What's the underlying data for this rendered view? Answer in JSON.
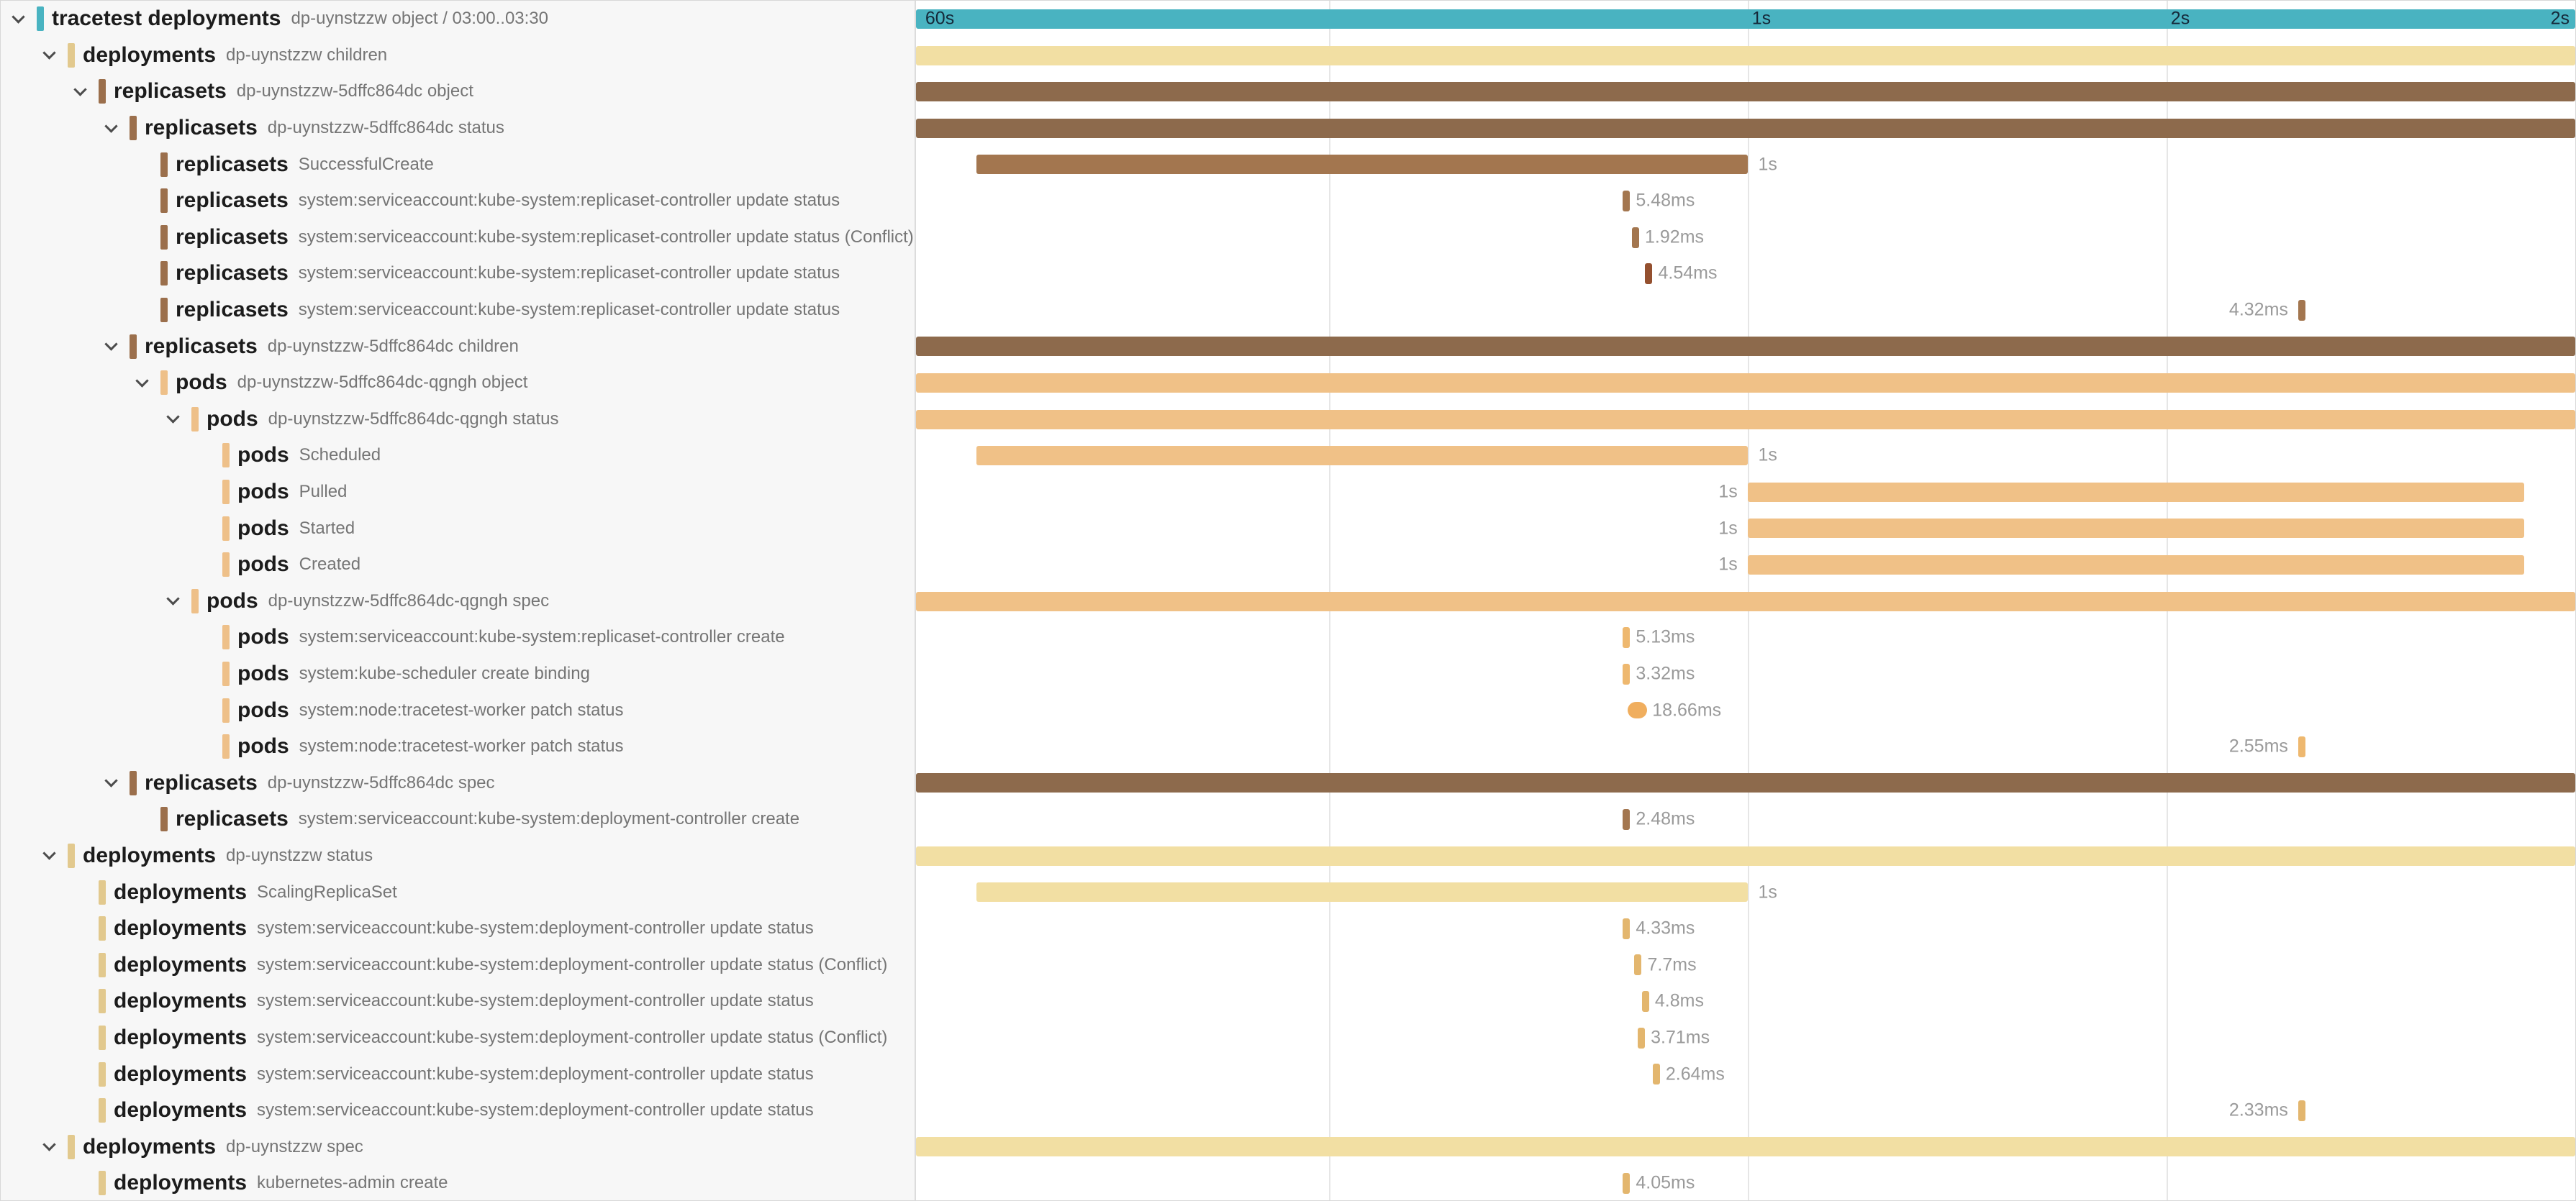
{
  "colors": {
    "teal": "#49b3c1",
    "cream": "#f2dfa3",
    "creamTick": "#e3b66e",
    "brown": "#8d6a4c",
    "brownMid": "#a3764f",
    "brownDark": "#94502f",
    "orange": "#f0c187",
    "orangeTick": "#eeb86f",
    "orangePill": "#f0ae5e",
    "rootChip": "#49b3c1",
    "deploymentsChip": "#e2c98e",
    "replicasetsChip": "#9b6f4c",
    "podsChip": "#eec089"
  },
  "timeline_header": {
    "gridlines": [
      24.88,
      50.12,
      75.36
    ],
    "ticks": [
      {
        "label": "60s",
        "pos": 0.3,
        "align": "left"
      },
      {
        "label": "1s",
        "pos": 50.12,
        "align": "left"
      },
      {
        "label": "2s",
        "pos": 75.36,
        "align": "left"
      },
      {
        "label": "2s",
        "pos": 100,
        "align": "right"
      }
    ]
  },
  "rows": [
    {
      "depth": 0,
      "expand": true,
      "kind": "root",
      "name": "tracetest deployments",
      "detail": "dp-uynstzzw object / 03:00..03:30",
      "bar": {
        "shape": "full",
        "color": "teal"
      }
    },
    {
      "depth": 1,
      "expand": true,
      "kind": "deployments",
      "name": "deployments",
      "detail": "dp-uynstzzw children",
      "bar": {
        "shape": "full",
        "color": "cream"
      }
    },
    {
      "depth": 2,
      "expand": true,
      "kind": "replicasets",
      "name": "replicasets",
      "detail": "dp-uynstzzw-5dffc864dc object",
      "bar": {
        "shape": "full",
        "color": "brown"
      }
    },
    {
      "depth": 3,
      "expand": true,
      "kind": "replicasets",
      "name": "replicasets",
      "detail": "dp-uynstzzw-5dffc864dc status",
      "bar": {
        "shape": "full",
        "color": "brown"
      }
    },
    {
      "depth": 4,
      "expand": false,
      "kind": "replicasets",
      "name": "replicasets",
      "detail": "SuccessfulCreate",
      "bar": {
        "shape": "bar",
        "color": "brownMid",
        "left": 3.65,
        "width": 46.5,
        "label": "1s",
        "labelSide": "right"
      }
    },
    {
      "depth": 4,
      "expand": false,
      "kind": "replicasets",
      "name": "replicasets",
      "detail": "system:serviceaccount:kube-system:replicaset-controller update status",
      "bar": {
        "shape": "tick",
        "color": "brownMid",
        "left": 42.6,
        "label": "5.48ms",
        "labelSide": "right"
      }
    },
    {
      "depth": 4,
      "expand": false,
      "kind": "replicasets",
      "name": "replicasets",
      "detail": "system:serviceaccount:kube-system:replicaset-controller update status (Conflict)",
      "bar": {
        "shape": "tick",
        "color": "brownMid",
        "left": 43.15,
        "label": "1.92ms",
        "labelSide": "right"
      }
    },
    {
      "depth": 4,
      "expand": false,
      "kind": "replicasets",
      "name": "replicasets",
      "detail": "system:serviceaccount:kube-system:replicaset-controller update status",
      "bar": {
        "shape": "tick",
        "color": "brownDark",
        "left": 43.95,
        "label": "4.54ms",
        "labelSide": "right"
      }
    },
    {
      "depth": 4,
      "expand": false,
      "kind": "replicasets",
      "name": "replicasets",
      "detail": "system:serviceaccount:kube-system:replicaset-controller update status",
      "bar": {
        "shape": "tick",
        "color": "brownMid",
        "left": 83.3,
        "label": "4.32ms",
        "labelSide": "left"
      }
    },
    {
      "depth": 3,
      "expand": true,
      "kind": "replicasets",
      "name": "replicasets",
      "detail": "dp-uynstzzw-5dffc864dc children",
      "bar": {
        "shape": "full",
        "color": "brown"
      }
    },
    {
      "depth": 4,
      "expand": true,
      "kind": "pods",
      "name": "pods",
      "detail": "dp-uynstzzw-5dffc864dc-qgngh object",
      "bar": {
        "shape": "full",
        "color": "orange"
      }
    },
    {
      "depth": 5,
      "expand": true,
      "kind": "pods",
      "name": "pods",
      "detail": "dp-uynstzzw-5dffc864dc-qgngh status",
      "bar": {
        "shape": "full",
        "color": "orange"
      }
    },
    {
      "depth": 6,
      "expand": false,
      "kind": "pods",
      "name": "pods",
      "detail": "Scheduled",
      "bar": {
        "shape": "bar",
        "color": "orange",
        "left": 3.65,
        "width": 46.5,
        "label": "1s",
        "labelSide": "right"
      }
    },
    {
      "depth": 6,
      "expand": false,
      "kind": "pods",
      "name": "pods",
      "detail": "Pulled",
      "bar": {
        "shape": "bar",
        "color": "orange",
        "left": 50.12,
        "width": 46.8,
        "label": "1s",
        "labelSide": "left"
      }
    },
    {
      "depth": 6,
      "expand": false,
      "kind": "pods",
      "name": "pods",
      "detail": "Started",
      "bar": {
        "shape": "bar",
        "color": "orange",
        "left": 50.12,
        "width": 46.8,
        "label": "1s",
        "labelSide": "left"
      }
    },
    {
      "depth": 6,
      "expand": false,
      "kind": "pods",
      "name": "pods",
      "detail": "Created",
      "bar": {
        "shape": "bar",
        "color": "orange",
        "left": 50.12,
        "width": 46.8,
        "label": "1s",
        "labelSide": "left"
      }
    },
    {
      "depth": 5,
      "expand": true,
      "kind": "pods",
      "name": "pods",
      "detail": "dp-uynstzzw-5dffc864dc-qgngh spec",
      "bar": {
        "shape": "full",
        "color": "orange"
      }
    },
    {
      "depth": 6,
      "expand": false,
      "kind": "pods",
      "name": "pods",
      "detail": "system:serviceaccount:kube-system:replicaset-controller create",
      "bar": {
        "shape": "tick",
        "color": "orangeTick",
        "left": 42.6,
        "label": "5.13ms",
        "labelSide": "right"
      }
    },
    {
      "depth": 6,
      "expand": false,
      "kind": "pods",
      "name": "pods",
      "detail": "system:kube-scheduler create binding",
      "bar": {
        "shape": "tick",
        "color": "orangeTick",
        "left": 42.6,
        "label": "3.32ms",
        "labelSide": "right"
      }
    },
    {
      "depth": 6,
      "expand": false,
      "kind": "pods",
      "name": "pods",
      "detail": "system:node:tracetest-worker patch status",
      "bar": {
        "shape": "pill",
        "color": "orangePill",
        "left": 42.9,
        "label": "18.66ms",
        "labelSide": "right"
      }
    },
    {
      "depth": 6,
      "expand": false,
      "kind": "pods",
      "name": "pods",
      "detail": "system:node:tracetest-worker patch status",
      "bar": {
        "shape": "tick",
        "color": "orangeTick",
        "left": 83.3,
        "label": "2.55ms",
        "labelSide": "left"
      }
    },
    {
      "depth": 3,
      "expand": true,
      "kind": "replicasets",
      "name": "replicasets",
      "detail": "dp-uynstzzw-5dffc864dc spec",
      "bar": {
        "shape": "full",
        "color": "brown"
      }
    },
    {
      "depth": 4,
      "expand": false,
      "kind": "replicasets",
      "name": "replicasets",
      "detail": "system:serviceaccount:kube-system:deployment-controller create",
      "bar": {
        "shape": "tick",
        "color": "brownMid",
        "left": 42.6,
        "label": "2.48ms",
        "labelSide": "right"
      }
    },
    {
      "depth": 1,
      "expand": true,
      "kind": "deployments",
      "name": "deployments",
      "detail": "dp-uynstzzw status",
      "bar": {
        "shape": "full",
        "color": "cream"
      }
    },
    {
      "depth": 2,
      "expand": false,
      "kind": "deployments",
      "name": "deployments",
      "detail": "ScalingReplicaSet",
      "bar": {
        "shape": "bar",
        "color": "cream",
        "left": 3.65,
        "width": 46.5,
        "label": "1s",
        "labelSide": "right"
      }
    },
    {
      "depth": 2,
      "expand": false,
      "kind": "deployments",
      "name": "deployments",
      "detail": "system:serviceaccount:kube-system:deployment-controller update status",
      "bar": {
        "shape": "tick",
        "color": "creamTick",
        "left": 42.6,
        "label": "4.33ms",
        "labelSide": "right"
      }
    },
    {
      "depth": 2,
      "expand": false,
      "kind": "deployments",
      "name": "deployments",
      "detail": "system:serviceaccount:kube-system:deployment-controller update status (Conflict)",
      "bar": {
        "shape": "tick",
        "color": "creamTick",
        "left": 43.3,
        "label": "7.7ms",
        "labelSide": "right"
      }
    },
    {
      "depth": 2,
      "expand": false,
      "kind": "deployments",
      "name": "deployments",
      "detail": "system:serviceaccount:kube-system:deployment-controller update status",
      "bar": {
        "shape": "tick",
        "color": "creamTick",
        "left": 43.75,
        "label": "4.8ms",
        "labelSide": "right"
      }
    },
    {
      "depth": 2,
      "expand": false,
      "kind": "deployments",
      "name": "deployments",
      "detail": "system:serviceaccount:kube-system:deployment-controller update status (Conflict)",
      "bar": {
        "shape": "tick",
        "color": "creamTick",
        "left": 43.5,
        "label": "3.71ms",
        "labelSide": "right"
      }
    },
    {
      "depth": 2,
      "expand": false,
      "kind": "deployments",
      "name": "deployments",
      "detail": "system:serviceaccount:kube-system:deployment-controller update status",
      "bar": {
        "shape": "tick",
        "color": "creamTick",
        "left": 44.4,
        "label": "2.64ms",
        "labelSide": "right"
      }
    },
    {
      "depth": 2,
      "expand": false,
      "kind": "deployments",
      "name": "deployments",
      "detail": "system:serviceaccount:kube-system:deployment-controller update status",
      "bar": {
        "shape": "tick",
        "color": "creamTick",
        "left": 83.3,
        "label": "2.33ms",
        "labelSide": "left"
      }
    },
    {
      "depth": 1,
      "expand": true,
      "kind": "deployments",
      "name": "deployments",
      "detail": "dp-uynstzzw spec",
      "bar": {
        "shape": "full",
        "color": "cream"
      }
    },
    {
      "depth": 2,
      "expand": false,
      "kind": "deployments",
      "name": "deployments",
      "detail": "kubernetes-admin create",
      "bar": {
        "shape": "tick",
        "color": "creamTick",
        "left": 42.6,
        "label": "4.05ms",
        "labelSide": "right"
      }
    }
  ]
}
